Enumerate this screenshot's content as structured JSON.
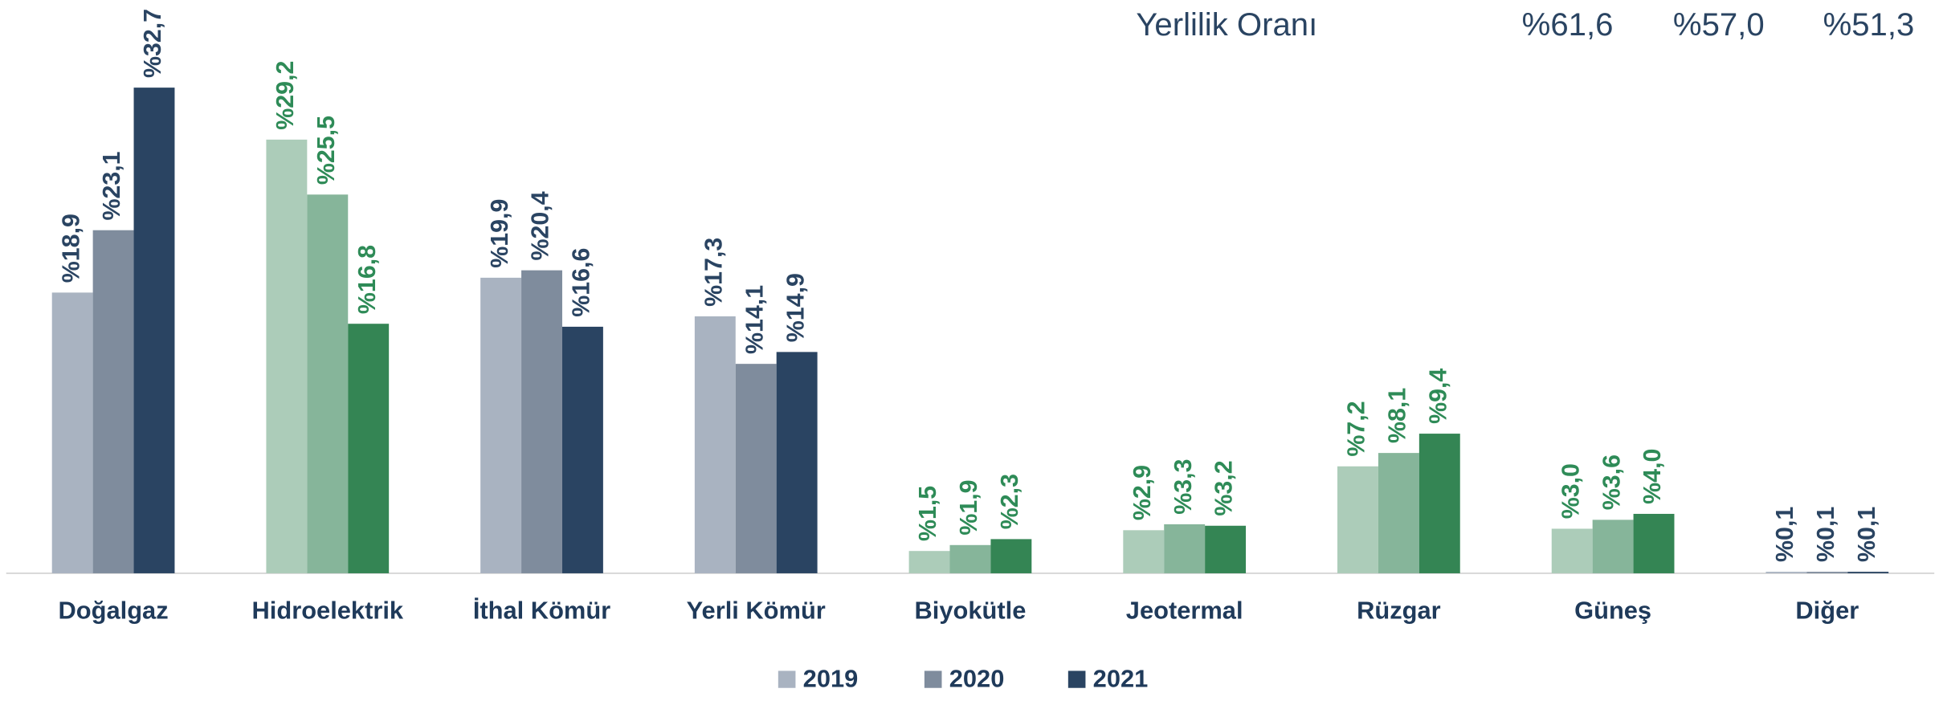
{
  "chart_data": {
    "type": "bar",
    "categories": [
      "Doğalgaz",
      "Hidroelektrik",
      "İthal Kömür",
      "Yerli Kömür",
      "Biyokütle",
      "Jeotermal",
      "Rüzgar",
      "Güneş",
      "Diğer"
    ],
    "series": [
      {
        "name": "2019",
        "color": "#a9b3c1",
        "colors": [
          "#a9b3c1",
          "#acccb9",
          "#a9b3c1",
          "#a9b3c1",
          "#acccb9",
          "#acccb9",
          "#acccb9",
          "#acccb9",
          "#a9b3c1"
        ],
        "values": [
          18.9,
          29.2,
          19.9,
          17.3,
          1.5,
          2.9,
          7.2,
          3.0,
          0.1
        ],
        "value_labels": [
          "%18,9",
          "%29,2",
          "%19,9",
          "%17,3",
          "%1,5",
          "%2,9",
          "%7,2",
          "%3,0",
          "%0,1"
        ]
      },
      {
        "name": "2020",
        "color": "#7f8c9d",
        "colors": [
          "#7f8c9d",
          "#86b59a",
          "#7f8c9d",
          "#7f8c9d",
          "#86b59a",
          "#86b59a",
          "#86b59a",
          "#86b59a",
          "#7f8c9d"
        ],
        "values": [
          23.1,
          25.5,
          20.4,
          14.1,
          1.9,
          3.3,
          8.1,
          3.6,
          0.1
        ],
        "value_labels": [
          "%23,1",
          "%25,5",
          "%20,4",
          "%14,1",
          "%1,9",
          "%3,3",
          "%8,1",
          "%3,6",
          "%0,1"
        ]
      },
      {
        "name": "2021",
        "color": "#2a4462",
        "colors": [
          "#2a4462",
          "#348554",
          "#2a4462",
          "#2a4462",
          "#348554",
          "#348554",
          "#348554",
          "#348554",
          "#2a4462"
        ],
        "values": [
          32.7,
          16.8,
          16.6,
          14.9,
          2.3,
          3.2,
          9.4,
          4.0,
          0.1
        ],
        "value_labels": [
          "%32,7",
          "%16,8",
          "%16,6",
          "%14,9",
          "%2,3",
          "%3,2",
          "%9,4",
          "%4,0",
          "%0,1"
        ]
      }
    ],
    "label_colors": [
      "#2a4462",
      "#2e8b57",
      "#2a4462",
      "#2a4462",
      "#2e8b57",
      "#2e8b57",
      "#2e8b57",
      "#2e8b57",
      "#2a4462"
    ],
    "ylim": [
      0,
      38.6
    ],
    "annotation": {
      "text": "Yerlilik Oranı",
      "values": [
        61.6,
        57.0,
        51.3
      ],
      "value_labels": [
        "%61,6",
        "%57,0",
        "%51,3"
      ]
    }
  }
}
